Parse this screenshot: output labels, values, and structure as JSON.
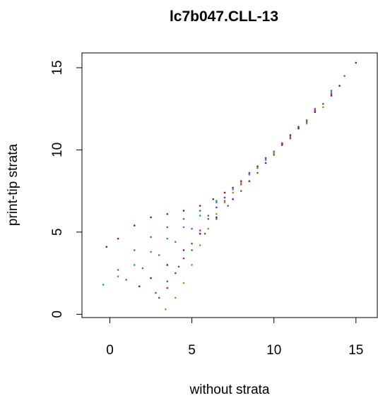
{
  "chart_data": {
    "type": "scatter",
    "title": "lc7b047.CLL-13",
    "xlabel": "without strata",
    "ylabel": "print-tip strata",
    "xlim": [
      -1.7,
      16.3
    ],
    "ylim": [
      -0.2,
      15.9
    ],
    "xticks": [
      0,
      5,
      10,
      15
    ],
    "yticks": [
      0,
      5,
      10,
      15
    ],
    "grid": false,
    "legend": "none",
    "point_colors": [
      "#8b1a1a",
      "#2e8b57",
      "#6a5acd",
      "#8b008b",
      "#b8860b",
      "#1e90ff",
      "#228b22",
      "#c71585",
      "#556b2f",
      "#4b0082"
    ],
    "series": [
      {
        "x": [
          -0.2,
          0.5,
          1.5,
          2.5,
          3.5,
          4.5,
          5.5,
          6.3,
          7.0,
          8.0,
          9.0,
          10.0,
          11.0,
          12.0,
          13.0,
          14.0,
          15.0
        ],
        "y": [
          4.1,
          4.6,
          5.4,
          5.9,
          6.1,
          6.3,
          6.6,
          7.0,
          7.4,
          8.1,
          9.0,
          9.9,
          10.9,
          11.8,
          12.8,
          13.9,
          15.3
        ],
        "color": "#8b1a1a"
      },
      {
        "x": [
          0.5,
          1.5,
          2.5,
          3.5,
          4.5,
          5.5,
          6.5,
          7.5,
          8.5,
          9.5,
          10.5,
          11.5,
          12.5,
          13.5,
          14.3
        ],
        "y": [
          2.7,
          3.9,
          4.7,
          5.3,
          5.8,
          6.3,
          6.9,
          7.7,
          8.5,
          9.4,
          10.4,
          11.4,
          12.5,
          13.6,
          14.5
        ],
        "color": "#2e8b57"
      },
      {
        "x": [
          -0.4,
          0.5,
          1.5,
          2.5,
          3.5,
          4.5,
          5.5,
          6.5,
          7.5,
          8.5,
          9.5,
          10.5,
          11.5,
          12.5,
          13.5
        ],
        "y": [
          1.8,
          2.3,
          3.0,
          3.8,
          4.6,
          5.3,
          6.0,
          6.8,
          7.6,
          8.5,
          9.4,
          10.4,
          11.4,
          12.4,
          13.5
        ],
        "color": "#1e90ff"
      },
      {
        "x": [
          1.0,
          2.0,
          3.0,
          4.0,
          5.0,
          6.0,
          7.0,
          8.0,
          9.0,
          10.0,
          11.0,
          12.0,
          13.0
        ],
        "y": [
          2.1,
          2.8,
          3.6,
          4.4,
          5.2,
          6.0,
          6.9,
          7.9,
          8.9,
          9.9,
          10.8,
          11.8,
          12.8
        ],
        "color": "#6a5acd"
      },
      {
        "x": [
          1.8,
          2.5,
          3.5,
          4.5,
          5.5,
          6.5,
          7.5,
          8.5,
          9.5,
          10.5,
          11.5,
          12.5,
          13.5
        ],
        "y": [
          1.7,
          2.2,
          3.0,
          3.9,
          4.9,
          5.9,
          7.0,
          8.1,
          9.2,
          10.3,
          11.3,
          12.3,
          13.3
        ],
        "color": "#8b008b"
      },
      {
        "x": [
          3.0,
          3.5,
          4.0,
          4.5,
          5.0,
          5.5,
          6.0,
          6.5,
          7.0,
          7.5,
          8.5,
          9.5,
          10.5,
          11.5,
          12.5,
          13.5
        ],
        "y": [
          1.0,
          1.6,
          2.5,
          3.4,
          4.3,
          5.1,
          5.8,
          6.5,
          7.1,
          7.7,
          8.6,
          9.5,
          10.4,
          11.4,
          12.4,
          13.4
        ],
        "color": "#c71585"
      },
      {
        "x": [
          3.4,
          4.0,
          4.5,
          5.0,
          5.5,
          6.0,
          6.5,
          7.0,
          7.5,
          8.0,
          9.0,
          10.0,
          11.0,
          12.0,
          13.0
        ],
        "y": [
          0.3,
          1.0,
          1.9,
          3.0,
          4.2,
          5.2,
          6.1,
          6.8,
          7.4,
          8.0,
          8.9,
          9.8,
          10.7,
          11.6,
          12.6
        ],
        "color": "#b8860b"
      },
      {
        "x": [
          2.8,
          3.5,
          4.2,
          5.0,
          5.8,
          6.5,
          7.2,
          8.0,
          9.0,
          10.0,
          11.0,
          12.0
        ],
        "y": [
          1.3,
          2.0,
          2.9,
          3.9,
          4.9,
          5.8,
          6.6,
          7.5,
          8.6,
          9.7,
          10.7,
          11.7
        ],
        "color": "#556b2f"
      }
    ]
  }
}
